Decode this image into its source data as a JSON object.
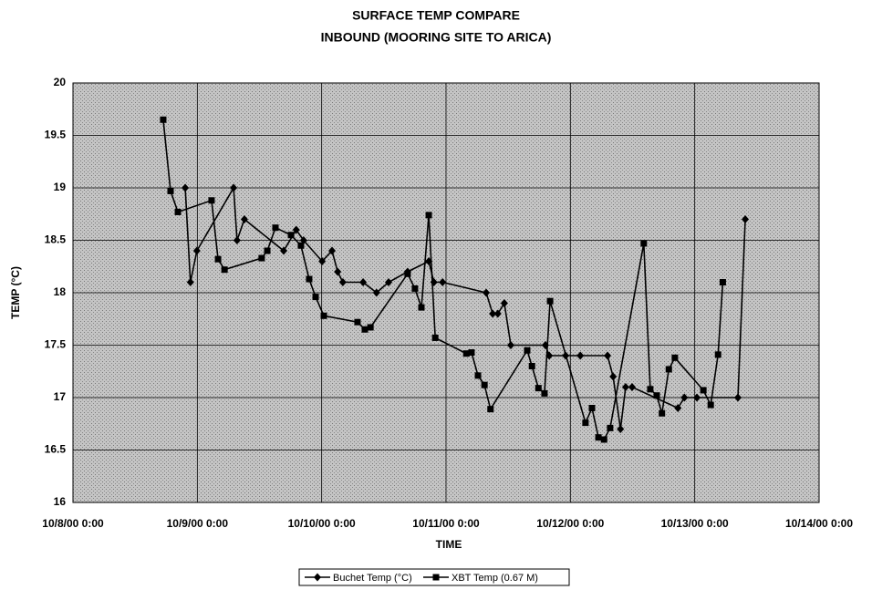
{
  "chart_data": {
    "type": "line",
    "title": "SURFACE TEMP COMPARE",
    "subtitle": "INBOUND (MOORING SITE TO ARICA)",
    "y_label": "TEMP  (°C)",
    "x_label": "TIME",
    "xlim": [
      "10/8/00 0:00",
      "10/14/00 0:00"
    ],
    "xticks": [
      {
        "value": "10/8/00 0:00",
        "label": "10/8/00  0:00"
      },
      {
        "value": "10/9/00 0:00",
        "label": "10/9/00  0:00"
      },
      {
        "value": "10/10/00 0:00",
        "label": "10/10/00  0:00"
      },
      {
        "value": "10/11/00 0:00",
        "label": "10/11/00  0:00"
      },
      {
        "value": "10/12/00 0:00",
        "label": "10/12/00  0:00"
      },
      {
        "value": "10/13/00 0:00",
        "label": "10/13/00  0:00"
      },
      {
        "value": "10/14/00 0:00",
        "label": "10/14/00  0:00"
      }
    ],
    "ylim": [
      16,
      20
    ],
    "yticks": [
      16,
      16.5,
      17,
      17.5,
      18,
      18.5,
      19,
      19.5,
      20
    ],
    "grid": true,
    "legend": "bottom",
    "series": [
      {
        "name": "Buchet Temp (°C)",
        "color": "#000000",
        "marker": "diamond",
        "x": [
          "10/8/00 21:40",
          "10/8/00 22:40",
          "10/8/00 23:55",
          "10/9/00 7:00",
          "10/9/00 7:40",
          "10/9/00 9:05",
          "10/9/00 16:40",
          "10/9/00 19:05",
          "10/9/00 20:30",
          "10/10/00 0:05",
          "10/10/00 2:00",
          "10/10/00 3:05",
          "10/10/00 4:05",
          "10/10/00 8:00",
          "10/10/00 10:35",
          "10/10/00 12:55",
          "10/10/00 16:35",
          "10/10/00 20:40",
          "10/10/00 21:40",
          "10/10/00 23:20",
          "10/11/00 7:45",
          "10/11/00 9:00",
          "10/11/00 10:00",
          "10/11/00 11:15",
          "10/11/00 12:30",
          "10/11/00 19:10",
          "10/11/00 19:55",
          "10/11/00 23:05",
          "10/12/00 1:55",
          "10/12/00 7:10",
          "10/12/00 8:15",
          "10/12/00 9:40",
          "10/12/00 10:40",
          "10/12/00 11:55",
          "10/12/00 20:45",
          "10/12/00 22:00",
          "10/13/00 0:25",
          "10/13/00 8:20",
          "10/13/00 9:45"
        ],
        "values": [
          19.0,
          18.1,
          18.4,
          19.0,
          18.5,
          18.7,
          18.4,
          18.6,
          18.5,
          18.3,
          18.4,
          18.2,
          18.1,
          18.1,
          18.0,
          18.1,
          18.2,
          18.3,
          18.1,
          18.1,
          18.0,
          17.8,
          17.8,
          17.9,
          17.5,
          17.5,
          17.4,
          17.4,
          17.4,
          17.4,
          17.2,
          16.7,
          17.1,
          17.1,
          16.9,
          17.0,
          17.0,
          17.0,
          18.7
        ]
      },
      {
        "name": "XBT Temp (0.67 M)",
        "color": "#000000",
        "marker": "square",
        "x": [
          "10/8/00 17:25",
          "10/8/00 18:50",
          "10/8/00 20:15",
          "10/9/00 2:45",
          "10/9/00 4:00",
          "10/9/00 5:15",
          "10/9/00 12:25",
          "10/9/00 13:30",
          "10/9/00 15:05",
          "10/9/00 18:05",
          "10/9/00 20:00",
          "10/9/00 21:35",
          "10/9/00 22:50",
          "10/10/00 0:25",
          "10/10/00 6:55",
          "10/10/00 8:20",
          "10/10/00 9:25",
          "10/10/00 16:35",
          "10/10/00 18:00",
          "10/10/00 19:15",
          "10/10/00 20:40",
          "10/10/00 21:55",
          "10/11/00 3:55",
          "10/11/00 4:55",
          "10/11/00 6:10",
          "10/11/00 7:25",
          "10/11/00 8:35",
          "10/11/00 15:40",
          "10/11/00 16:35",
          "10/11/00 17:50",
          "10/11/00 19:00",
          "10/11/00 20:05",
          "10/12/00 2:55",
          "10/12/00 4:10",
          "10/12/00 5:25",
          "10/12/00 6:30",
          "10/12/00 7:40",
          "10/12/00 14:10",
          "10/12/00 15:25",
          "10/12/00 16:40",
          "10/12/00 17:40",
          "10/12/00 19:00",
          "10/12/00 20:10",
          "10/13/00 1:40",
          "10/13/00 3:05",
          "10/13/00 4:30",
          "10/13/00 5:25"
        ],
        "values": [
          19.65,
          18.97,
          18.77,
          18.88,
          18.32,
          18.22,
          18.33,
          18.4,
          18.62,
          18.55,
          18.45,
          18.13,
          17.96,
          17.78,
          17.72,
          17.65,
          17.67,
          18.18,
          18.04,
          17.86,
          18.74,
          17.57,
          17.42,
          17.43,
          17.21,
          17.12,
          16.89,
          17.45,
          17.3,
          17.09,
          17.04,
          17.92,
          16.76,
          16.9,
          16.62,
          16.6,
          16.71,
          18.47,
          17.08,
          17.02,
          16.85,
          17.27,
          17.38,
          17.07,
          16.93,
          17.41,
          18.1
        ]
      }
    ]
  }
}
